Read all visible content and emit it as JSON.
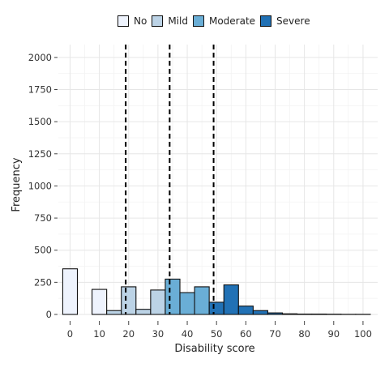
{
  "chart_data": {
    "type": "bar",
    "xlabel": "Disability score",
    "ylabel": "Frequency",
    "xlim": [
      -4,
      105
    ],
    "ylim": [
      0,
      2100
    ],
    "x_ticks": [
      0,
      10,
      20,
      30,
      40,
      50,
      60,
      70,
      80,
      90,
      100
    ],
    "y_ticks": [
      0,
      250,
      500,
      750,
      1000,
      1250,
      1500,
      1750,
      2000
    ],
    "grid": true,
    "legend_position": "top",
    "categories_legend": [
      "No",
      "Mild",
      "Moderate",
      "Severe"
    ],
    "colors": {
      "No": "#eef3fd",
      "Mild": "#bcd3e6",
      "Moderate": "#6aaed6",
      "Severe": "#2171b5"
    },
    "cutoffs": [
      19,
      34,
      49
    ],
    "bin_width": 5,
    "bins": [
      {
        "x": 0,
        "value": 355,
        "severity": "No"
      },
      {
        "x": 5,
        "value": 0,
        "severity": "No"
      },
      {
        "x": 10,
        "value": 195,
        "severity": "No"
      },
      {
        "x": 15,
        "value": 30,
        "severity": "Mild"
      },
      {
        "x": 20,
        "value": 215,
        "severity": "Mild"
      },
      {
        "x": 25,
        "value": 40,
        "severity": "Mild"
      },
      {
        "x": 30,
        "value": 190,
        "severity": "Mild"
      },
      {
        "x": 35,
        "value": 275,
        "severity": "Moderate"
      },
      {
        "x": 40,
        "value": 170,
        "severity": "Moderate"
      },
      {
        "x": 45,
        "value": 215,
        "severity": "Moderate"
      },
      {
        "x": 50,
        "value": 95,
        "severity": "Severe"
      },
      {
        "x": 55,
        "value": 230,
        "severity": "Severe"
      },
      {
        "x": 60,
        "value": 65,
        "severity": "Severe"
      },
      {
        "x": 65,
        "value": 30,
        "severity": "Severe"
      },
      {
        "x": 70,
        "value": 12,
        "severity": "Severe"
      },
      {
        "x": 75,
        "value": 5,
        "severity": "Severe"
      },
      {
        "x": 80,
        "value": 3,
        "severity": "Severe"
      },
      {
        "x": 85,
        "value": 3,
        "severity": "Severe"
      },
      {
        "x": 90,
        "value": 2,
        "severity": "Severe"
      },
      {
        "x": 95,
        "value": 1,
        "severity": "Severe"
      },
      {
        "x": 100,
        "value": 1,
        "severity": "Severe"
      }
    ]
  }
}
